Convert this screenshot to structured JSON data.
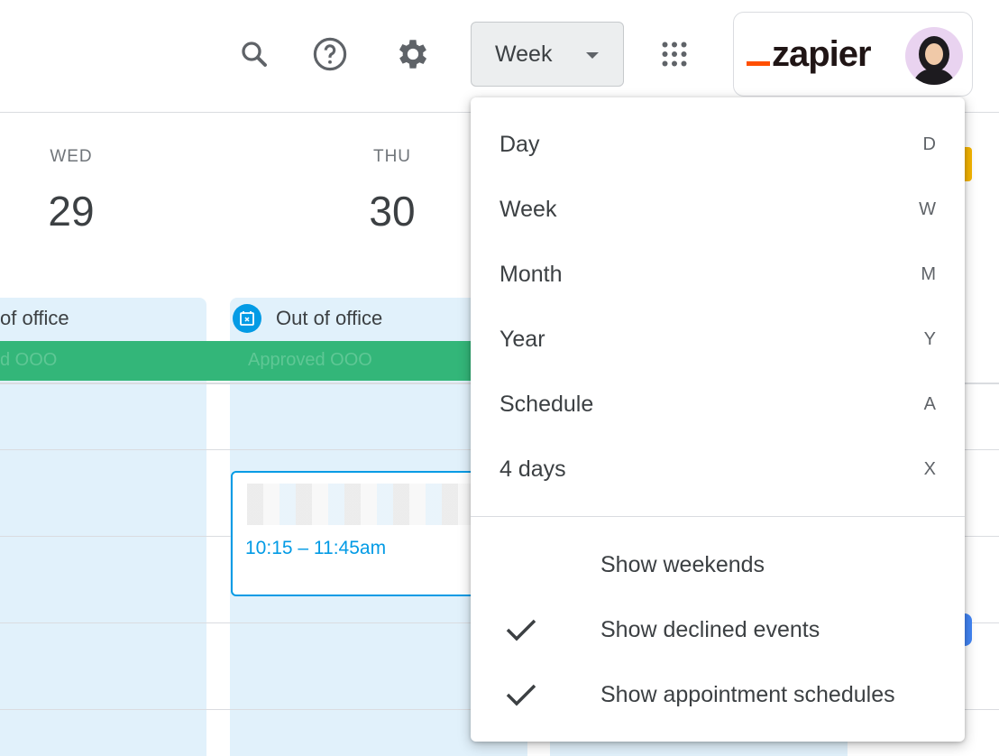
{
  "header": {
    "view_button": "Week",
    "icons": [
      "search-icon",
      "help-icon",
      "settings-icon",
      "apps-grid-icon"
    ],
    "brand": "zapier"
  },
  "days": [
    {
      "name": "WED",
      "number": "29"
    },
    {
      "name": "THU",
      "number": "30"
    }
  ],
  "all_day": {
    "col1_title": "of office",
    "col2_title": "Out of office",
    "green_bar_col1": "d OOO",
    "green_bar_col2": "Approved OOO"
  },
  "event": {
    "time": "10:15 – 11:45am"
  },
  "menu": {
    "views": [
      {
        "label": "Day",
        "key": "D"
      },
      {
        "label": "Week",
        "key": "W"
      },
      {
        "label": "Month",
        "key": "M"
      },
      {
        "label": "Year",
        "key": "Y"
      },
      {
        "label": "Schedule",
        "key": "A"
      },
      {
        "label": "4 days",
        "key": "X"
      }
    ],
    "options": [
      {
        "label": "Show weekends",
        "checked": false
      },
      {
        "label": "Show declined events",
        "checked": true
      },
      {
        "label": "Show appointment schedules",
        "checked": true
      }
    ]
  },
  "colors": {
    "ooo_bg": "#e1f1fb",
    "green": "#33b679",
    "event_blue": "#039be5",
    "zapier_orange": "#ff4f00"
  }
}
